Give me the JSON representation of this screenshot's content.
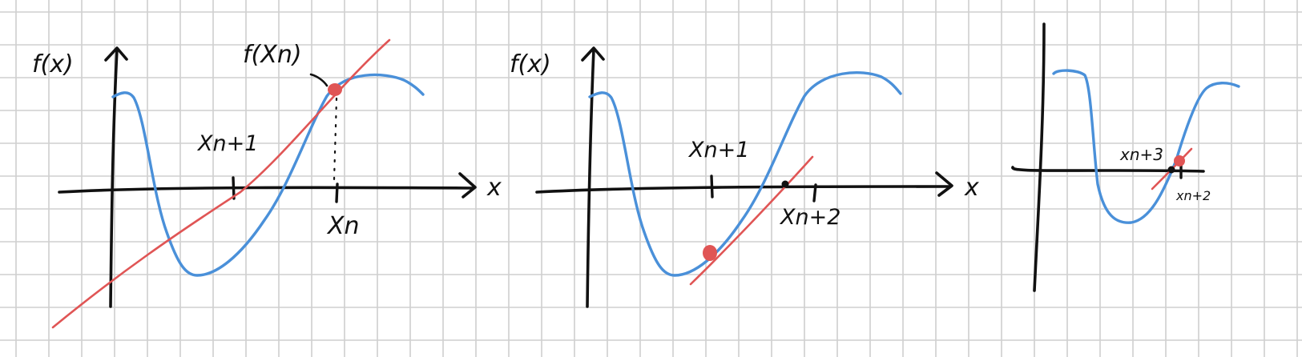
{
  "panels": [
    {
      "y_label": "f(x)",
      "x_label": "x",
      "point_label": "f(Xn)",
      "tick_labels": [
        "Xn+1",
        "Xn"
      ]
    },
    {
      "y_label": "f(x)",
      "x_label": "x",
      "tick_labels": [
        "Xn+1",
        "Xn+2"
      ]
    },
    {
      "tick_labels": [
        "xn+3",
        "xn+2"
      ]
    }
  ],
  "colors": {
    "curve": "#4a90d9",
    "tangent": "#e05555",
    "ink": "#111111",
    "grid": "#cfcfcf"
  }
}
